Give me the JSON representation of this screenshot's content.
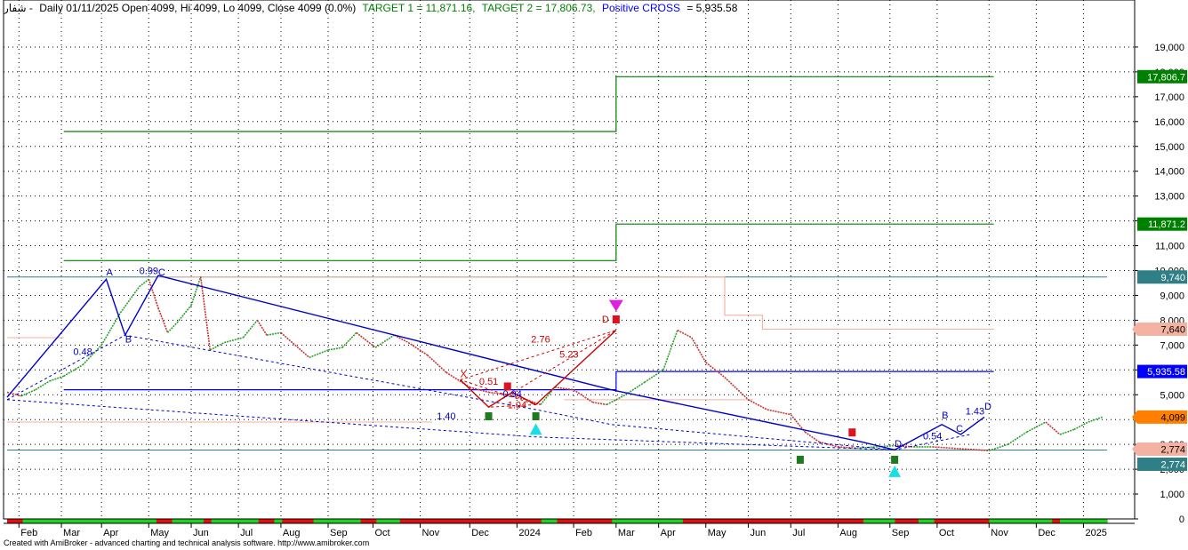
{
  "header": {
    "symbol": "شفار -",
    "info": "Daily 01/11/2025 Open 4099, Hi 4099, Lo 4099, Close 4099 (0.0%)",
    "target1": "TARGET 1 = 11,871.16,",
    "target2": "TARGET 2 = 17,806.73,",
    "signal": "Positive CROSS",
    "signal_value": "= 5,935.58"
  },
  "footer": "Created with AmiBroker - advanced charting and technical analysis software. http://www.amibroker.com",
  "chart_data": {
    "type": "line",
    "title": "",
    "xlabel": "",
    "ylabel": "",
    "ylim": [
      0,
      20000
    ],
    "y_ticks": [
      0,
      1000,
      2000,
      3000,
      4000,
      5000,
      6000,
      7000,
      8000,
      9000,
      10000,
      11000,
      12000,
      13000,
      14000,
      15000,
      16000,
      17000,
      18000,
      19000
    ],
    "y_tick_labels": [
      "0",
      "1,000",
      "2,000",
      "3,000",
      "4,000",
      "5,000",
      "6,000",
      "7,000",
      "8,000",
      "9,000",
      "10,000",
      "11,000",
      "12,000",
      "13,000",
      "14,000",
      "15,000",
      "16,000",
      "17,000",
      "18,000",
      "19,000"
    ],
    "x_range": [
      0,
      23.3
    ],
    "x_ticks": [
      {
        "label": "Feb",
        "pos": 0.25
      },
      {
        "label": "Mar",
        "pos": 1.15
      },
      {
        "label": "Apr",
        "pos": 2.0
      },
      {
        "label": "May",
        "pos": 3.0
      },
      {
        "label": "Jun",
        "pos": 3.9
      },
      {
        "label": "Jul",
        "pos": 4.9
      },
      {
        "label": "Aug",
        "pos": 5.8
      },
      {
        "label": "Sep",
        "pos": 6.8
      },
      {
        "label": "Oct",
        "pos": 7.75
      },
      {
        "label": "Nov",
        "pos": 8.75
      },
      {
        "label": "Dec",
        "pos": 9.8
      },
      {
        "label": "2024",
        "pos": 10.8
      },
      {
        "label": "Feb",
        "pos": 12.0
      },
      {
        "label": "Mar",
        "pos": 12.9
      },
      {
        "label": "Apr",
        "pos": 13.8
      },
      {
        "label": "May",
        "pos": 14.8
      },
      {
        "label": "Jun",
        "pos": 15.7
      },
      {
        "label": "Jul",
        "pos": 16.6
      },
      {
        "label": "Aug",
        "pos": 17.6
      },
      {
        "label": "Sep",
        "pos": 18.7
      },
      {
        "label": "Oct",
        "pos": 19.7
      },
      {
        "label": "Nov",
        "pos": 20.8
      },
      {
        "label": "Dec",
        "pos": 21.8
      },
      {
        "label": "2025",
        "pos": 22.8
      }
    ],
    "price_series": {
      "name": "Close",
      "points": [
        [
          0.0,
          5100
        ],
        [
          0.3,
          4950
        ],
        [
          0.6,
          5200
        ],
        [
          0.9,
          5550
        ],
        [
          1.2,
          5750
        ],
        [
          1.6,
          6200
        ],
        [
          2.0,
          7000
        ],
        [
          2.4,
          8300
        ],
        [
          2.8,
          9350
        ],
        [
          3.0,
          9650
        ],
        [
          3.2,
          8500
        ],
        [
          3.4,
          7500
        ],
        [
          3.6,
          7900
        ],
        [
          3.9,
          8600
        ],
        [
          4.1,
          9750
        ],
        [
          4.3,
          6800
        ],
        [
          4.6,
          7100
        ],
        [
          5.0,
          7300
        ],
        [
          5.3,
          8000
        ],
        [
          5.5,
          7400
        ],
        [
          5.8,
          7500
        ],
        [
          6.1,
          7000
        ],
        [
          6.4,
          6500
        ],
        [
          6.8,
          6800
        ],
        [
          7.1,
          6900
        ],
        [
          7.4,
          7500
        ],
        [
          7.8,
          6900
        ],
        [
          8.2,
          7400
        ],
        [
          8.5,
          7100
        ],
        [
          8.9,
          6600
        ],
        [
          9.3,
          5900
        ],
        [
          9.8,
          5300
        ],
        [
          10.2,
          5100
        ],
        [
          10.6,
          5000
        ],
        [
          11.0,
          4800
        ],
        [
          11.3,
          4600
        ],
        [
          11.6,
          5300
        ],
        [
          12.0,
          5200
        ],
        [
          12.4,
          4700
        ],
        [
          12.7,
          4600
        ],
        [
          13.1,
          5000
        ],
        [
          13.5,
          5500
        ],
        [
          13.9,
          6000
        ],
        [
          14.2,
          7600
        ],
        [
          14.5,
          7300
        ],
        [
          14.8,
          6300
        ],
        [
          15.2,
          5700
        ],
        [
          15.7,
          4800
        ],
        [
          16.1,
          4400
        ],
        [
          16.6,
          4200
        ],
        [
          16.9,
          3500
        ],
        [
          17.2,
          3100
        ],
        [
          17.6,
          2900
        ],
        [
          18.0,
          2850
        ],
        [
          18.4,
          2900
        ],
        [
          18.8,
          2950
        ],
        [
          19.2,
          2900
        ],
        [
          19.6,
          2900
        ],
        [
          20.0,
          2850
        ],
        [
          20.4,
          2800
        ],
        [
          20.8,
          2750
        ],
        [
          21.2,
          3000
        ],
        [
          21.6,
          3500
        ],
        [
          22.0,
          3900
        ],
        [
          22.3,
          3400
        ],
        [
          22.6,
          3600
        ],
        [
          22.9,
          3900
        ],
        [
          23.2,
          4099
        ]
      ]
    },
    "horizontal_levels": [
      {
        "label": "17,806.7",
        "value": 17806.7,
        "color": "#008000"
      },
      {
        "label": "11,871.2",
        "value": 11871.2,
        "color": "#008000"
      },
      {
        "label": "9,740",
        "value": 9740,
        "color": "#2f7f86"
      },
      {
        "label": "7,640",
        "value": 7640,
        "color": "#f3b2a2"
      },
      {
        "label": "5,935.58",
        "value": 5935.58,
        "color": "#0000ff"
      },
      {
        "label": "4,099",
        "value": 4099,
        "color": "#ff8000"
      },
      {
        "label": "2,774",
        "value": 2774,
        "color": "#f3b2a2"
      },
      {
        "label": "2,774",
        "value": 2774,
        "color": "#2f7f86"
      }
    ],
    "target_lines": [
      {
        "name": "TARGET 2",
        "color": "#008000",
        "points": [
          [
            1.2,
            15600
          ],
          [
            12.9,
            15600
          ],
          [
            12.9,
            17806.7
          ],
          [
            20.9,
            17806.7
          ]
        ]
      },
      {
        "name": "TARGET 1",
        "color": "#008000",
        "points": [
          [
            1.2,
            10400
          ],
          [
            12.9,
            10400
          ],
          [
            12.9,
            11871.2
          ],
          [
            20.9,
            11871.2
          ]
        ]
      },
      {
        "name": "Positive CROSS",
        "color": "#0000ff",
        "points": [
          [
            1.2,
            5200
          ],
          [
            12.9,
            5200
          ],
          [
            12.9,
            5935.58
          ],
          [
            20.9,
            5935.58
          ]
        ]
      }
    ],
    "pattern_lines": [
      {
        "color": "#0000cc",
        "width": 1.4,
        "dash": "",
        "points": [
          [
            0.0,
            4900
          ],
          [
            2.1,
            9650
          ],
          [
            2.5,
            7400
          ],
          [
            3.2,
            9800
          ],
          [
            12.8,
            5200
          ],
          [
            18.1,
            3100
          ],
          [
            18.8,
            2780
          ],
          [
            19.8,
            3800
          ],
          [
            20.2,
            3400
          ],
          [
            20.7,
            4099
          ]
        ]
      },
      {
        "color": "#0000cc",
        "width": 1,
        "dash": "3,3",
        "points": [
          [
            0.0,
            4800
          ],
          [
            2.5,
            7400
          ],
          [
            11.2,
            4400
          ],
          [
            12.8,
            3800
          ],
          [
            18.8,
            2780
          ],
          [
            20.4,
            3400
          ]
        ]
      },
      {
        "color": "#0000cc",
        "width": 1,
        "dash": "3,3",
        "points": [
          [
            0.0,
            4800
          ],
          [
            11.2,
            3300
          ],
          [
            18.8,
            2780
          ]
        ]
      },
      {
        "color": "#cc0000",
        "width": 1.4,
        "dash": "",
        "points": [
          [
            9.6,
            5600
          ],
          [
            10.2,
            4500
          ],
          [
            10.7,
            5100
          ],
          [
            11.2,
            4600
          ],
          [
            12.9,
            7600
          ]
        ]
      },
      {
        "color": "#cc0000",
        "width": 1,
        "dash": "3,3",
        "points": [
          [
            9.6,
            5600
          ],
          [
            12.9,
            7600
          ],
          [
            10.2,
            4500
          ],
          [
            11.2,
            4600
          ],
          [
            9.6,
            5600
          ]
        ]
      }
    ],
    "pattern_labels": [
      {
        "text": "A",
        "x": 2.1,
        "y": 9800,
        "color": "#0000cc"
      },
      {
        "text": "B",
        "x": 2.5,
        "y": 7100,
        "color": "#0000cc"
      },
      {
        "text": "C",
        "x": 3.2,
        "y": 9800,
        "color": "#0000cc"
      },
      {
        "text": "0.99",
        "x": 2.8,
        "y": 9850,
        "color": "#0000cc"
      },
      {
        "text": "0.48",
        "x": 1.4,
        "y": 6600,
        "color": "#0000cc"
      },
      {
        "text": "1.40",
        "x": 9.1,
        "y": 4000,
        "color": "#0000cc"
      },
      {
        "text": "X",
        "x": 9.6,
        "y": 5700,
        "color": "#cc0000"
      },
      {
        "text": "0.51",
        "x": 10.0,
        "y": 5400,
        "color": "#cc0000"
      },
      {
        "text": "0.94",
        "x": 10.5,
        "y": 4900,
        "color": "#0000cc"
      },
      {
        "text": "1.04",
        "x": 10.6,
        "y": 4450,
        "color": "#cc0000"
      },
      {
        "text": "2.76",
        "x": 11.1,
        "y": 7100,
        "color": "#cc0000"
      },
      {
        "text": "5.23",
        "x": 11.7,
        "y": 6500,
        "color": "#cc0000"
      },
      {
        "text": "D",
        "x": 12.6,
        "y": 7900,
        "color": "#cc0000"
      },
      {
        "text": "D",
        "x": 18.8,
        "y": 2900,
        "color": "#0000cc"
      },
      {
        "text": "0.54",
        "x": 19.4,
        "y": 3200,
        "color": "#0000cc"
      },
      {
        "text": "B",
        "x": 19.8,
        "y": 4050,
        "color": "#0000cc"
      },
      {
        "text": "C",
        "x": 20.1,
        "y": 3500,
        "color": "#0000cc"
      },
      {
        "text": "1.43",
        "x": 20.3,
        "y": 4200,
        "color": "#0000cc"
      },
      {
        "text": "D",
        "x": 20.7,
        "y": 4400,
        "color": "#0000cc"
      }
    ],
    "signal_markers": [
      {
        "type": "green-square",
        "x": 10.2,
        "y": 4150
      },
      {
        "type": "red-square",
        "x": 10.6,
        "y": 5350
      },
      {
        "type": "green-square",
        "x": 11.2,
        "y": 4150
      },
      {
        "type": "cyan-triangle-up",
        "x": 11.2,
        "y": 3600
      },
      {
        "type": "magenta-triangle-down",
        "x": 12.9,
        "y": 8600
      },
      {
        "type": "red-square",
        "x": 12.9,
        "y": 8050
      },
      {
        "type": "green-square",
        "x": 16.8,
        "y": 2400
      },
      {
        "type": "red-square",
        "x": 17.9,
        "y": 3500
      },
      {
        "type": "green-square",
        "x": 18.8,
        "y": 2400
      },
      {
        "type": "cyan-triangle-up",
        "x": 18.8,
        "y": 1900
      }
    ]
  }
}
